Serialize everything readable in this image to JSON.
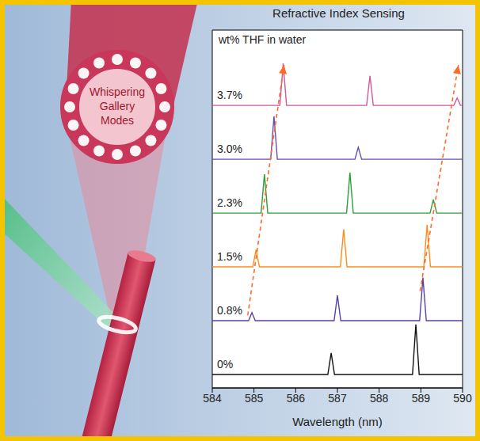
{
  "chart_data": {
    "type": "line",
    "title": "Refractive Index Sensing",
    "x_label": "Wavelength (nm)",
    "annotations": [
      "wt% THF in water"
    ],
    "xlim": [
      584,
      590
    ],
    "xticks": [
      584,
      585,
      586,
      587,
      588,
      589,
      590
    ],
    "ylim": [
      -0.25,
      6.4
    ],
    "tick_labels": "x",
    "series": [
      {
        "name": "0%",
        "color": "#111111",
        "x": [
          584,
          586.77,
          586.85,
          586.93,
          588.8,
          588.88,
          588.96,
          590
        ],
        "values": [
          0,
          0,
          0.4,
          0,
          0,
          0.93,
          0,
          0
        ]
      },
      {
        "name": "0.8%",
        "color": "#5b3fa8",
        "x": [
          584,
          584.87,
          584.95,
          585.03,
          586.92,
          587.0,
          587.08,
          588.97,
          589.05,
          589.13,
          590
        ],
        "values": [
          1,
          1,
          1.15,
          1,
          1,
          1.47,
          1,
          1,
          1.8,
          1,
          1
        ]
      },
      {
        "name": "1.5%",
        "color": "#ff8c1a",
        "x": [
          584,
          584.97,
          585.05,
          585.13,
          587.07,
          587.15,
          587.23,
          589.07,
          589.15,
          589.23,
          590
        ],
        "values": [
          2,
          2,
          2.32,
          2,
          2,
          2.7,
          2,
          2,
          2.78,
          2,
          2
        ]
      },
      {
        "name": "2.3%",
        "color": "#2e9e3a",
        "x": [
          584,
          585.17,
          585.25,
          585.33,
          587.22,
          587.3,
          587.38,
          589.22,
          589.3,
          589.38,
          590
        ],
        "values": [
          3,
          3,
          3.72,
          3,
          3,
          3.75,
          3,
          3,
          3.25,
          3,
          3
        ]
      },
      {
        "name": "3.0%",
        "color": "#6a4cb0",
        "x": [
          584,
          585.4,
          585.48,
          585.56,
          587.42,
          587.5,
          587.58,
          590
        ],
        "values": [
          4,
          4,
          4.8,
          4,
          4,
          4.22,
          4,
          4
        ]
      },
      {
        "name": "3.7%",
        "color": "#d0589f",
        "x": [
          584,
          585.62,
          585.7,
          585.78,
          587.7,
          587.78,
          587.86,
          589.79,
          589.87,
          589.95,
          590
        ],
        "values": [
          5,
          5,
          5.78,
          5,
          5,
          5.55,
          5,
          5,
          5.14,
          5,
          5
        ]
      },
      {
        "color": "#ff6a2a",
        "line_style": "dashed",
        "marker": "arrow",
        "x": [
          584.85,
          585.72
        ],
        "values": [
          1.1,
          5.75
        ]
      },
      {
        "color": "#ff6a2a",
        "line_style": "dashed",
        "marker": "arrow",
        "x": [
          588.98,
          589.9
        ],
        "values": [
          1.55,
          5.75
        ]
      }
    ]
  },
  "illustration": {
    "label": "Whispering Gallery Modes"
  }
}
